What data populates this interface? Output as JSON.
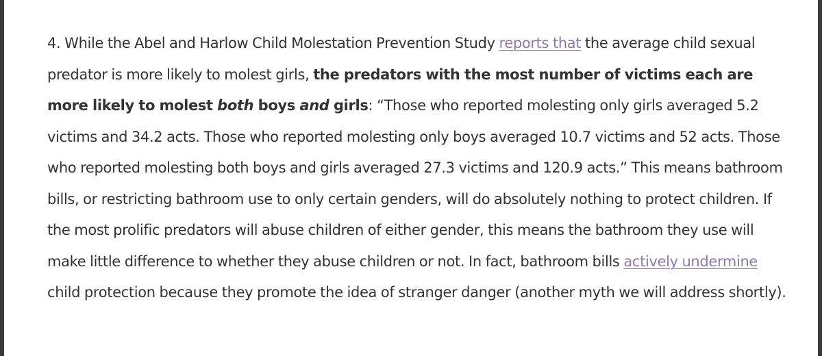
{
  "colors": {
    "text": "#333333",
    "link": "#8a7bad",
    "background": "#ffffff",
    "border": "#3a3a3a"
  },
  "paragraph": {
    "intro": "4. While the Abel and Harlow Child Molestation Prevention Study ",
    "link1": "reports that",
    "after_link1": " the average child sexual predator is more likely to molest girls, ",
    "bold_a": "the predators with the most number of victims each are more likely to molest ",
    "bold_both": "both",
    "bold_b": " boys ",
    "bold_and": "and",
    "bold_c": " girls",
    "quote": ": “Those who reported molesting only girls averaged 5.2 victims and 34.2 acts. Those who reported molesting only boys averaged 10.7 victims and 52 acts. Those who reported molesting both boys and girls averaged 27.3 victims and 120.9 acts.” This means bathroom bills, or restricting bathroom use to only certain genders, will do absolutely nothing to protect children. If the most prolific predators will abuse children of either gender, this means the bathroom they use will make little difference to whether they abuse children or not. In fact, bathroom bills ",
    "link2": "actively undermine",
    "ending": " child protection because they promote the idea of stranger danger (another myth we will address shortly)."
  }
}
